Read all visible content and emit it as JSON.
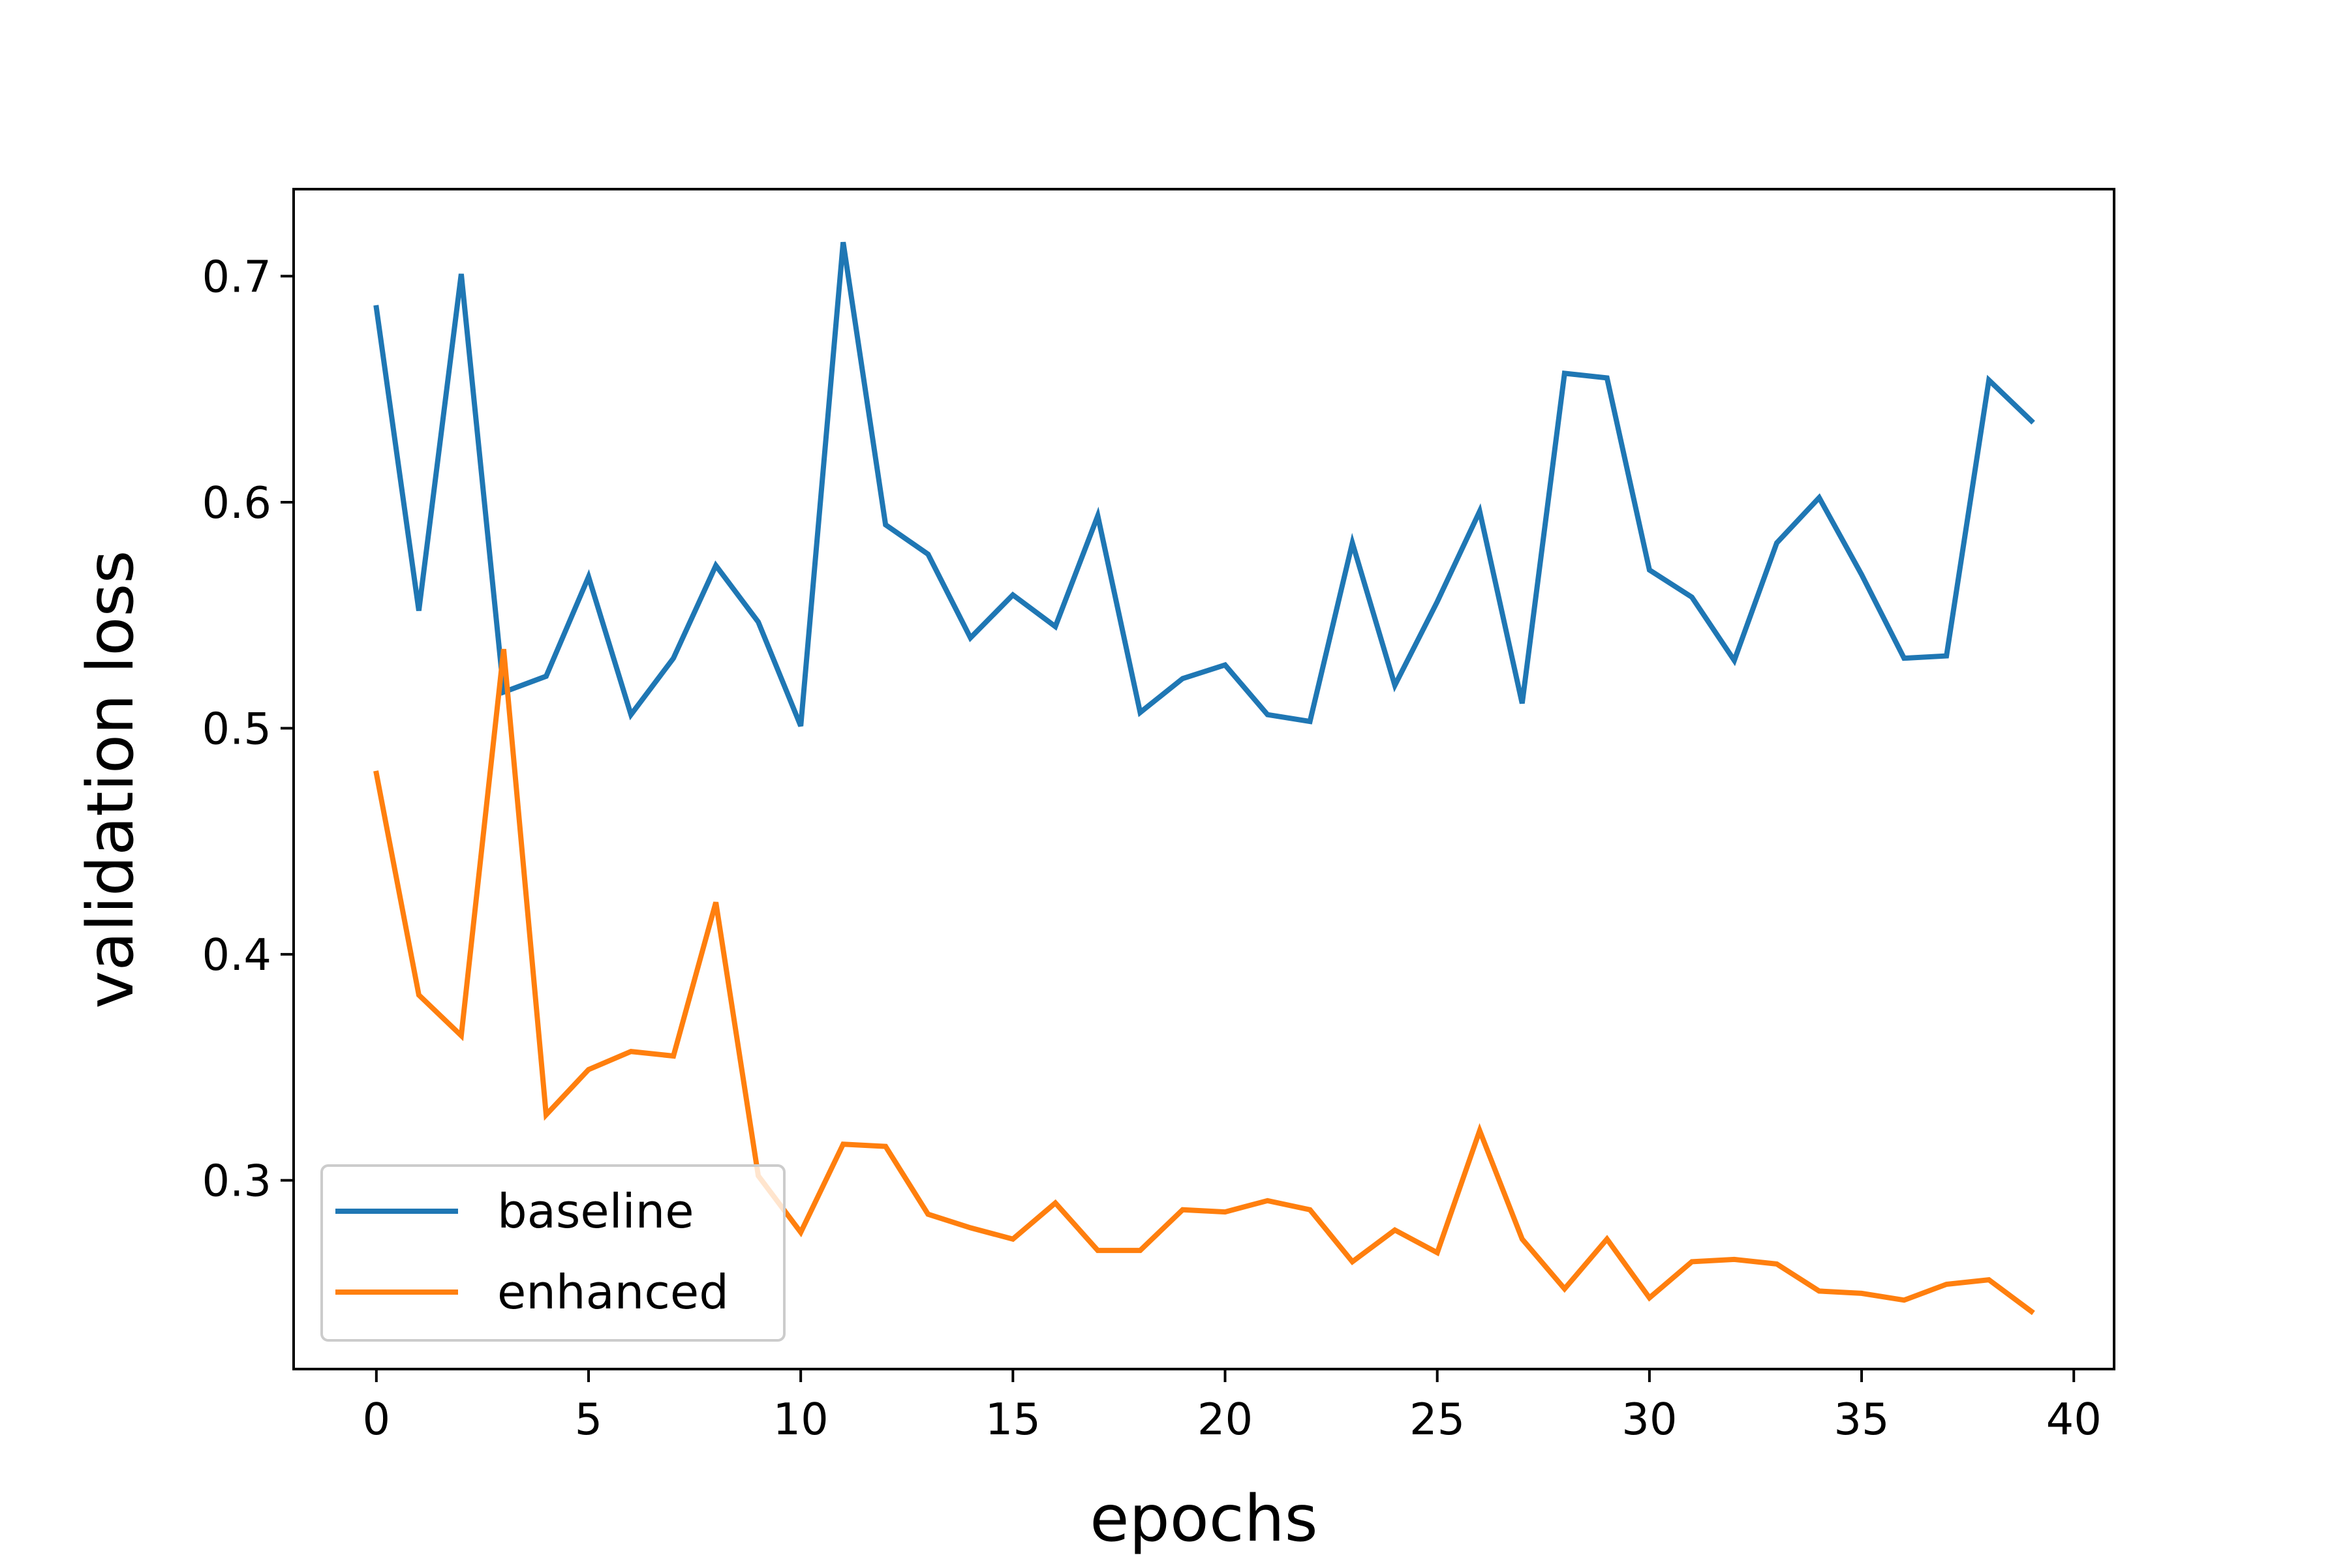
{
  "chart_data": {
    "type": "line",
    "title": "",
    "xlabel": "epochs",
    "ylabel": "validation loss",
    "xlim": [
      -1.95,
      40.95
    ],
    "ylim": [
      0.2165,
      0.7385
    ],
    "xticks": [
      0,
      5,
      10,
      15,
      20,
      25,
      30,
      35,
      40
    ],
    "xtick_labels": [
      "0",
      "5",
      "10",
      "15",
      "20",
      "25",
      "30",
      "35",
      "40"
    ],
    "yticks": [
      0.3,
      0.4,
      0.5,
      0.6,
      0.7
    ],
    "ytick_labels": [
      "0.3",
      "0.4",
      "0.5",
      "0.6",
      "0.7"
    ],
    "grid": false,
    "legend_position": "lower-left",
    "x": [
      0,
      1,
      2,
      3,
      4,
      5,
      6,
      7,
      8,
      9,
      10,
      11,
      12,
      13,
      14,
      15,
      16,
      17,
      18,
      19,
      20,
      21,
      22,
      23,
      24,
      25,
      26,
      27,
      28,
      29,
      30,
      31,
      32,
      33,
      34,
      35,
      36,
      37,
      38,
      39
    ],
    "series": [
      {
        "name": "baseline",
        "color": "#1f77b4",
        "values": [
          0.686,
          0.552,
          0.701,
          0.516,
          0.523,
          0.567,
          0.506,
          0.531,
          0.572,
          0.547,
          0.501,
          0.715,
          0.59,
          0.577,
          0.54,
          0.559,
          0.545,
          0.594,
          0.507,
          0.522,
          0.528,
          0.506,
          0.503,
          0.582,
          0.519,
          0.556,
          0.596,
          0.511,
          0.657,
          0.655,
          0.57,
          0.558,
          0.53,
          0.582,
          0.602,
          0.568,
          0.531,
          0.532,
          0.654,
          0.636
        ]
      },
      {
        "name": "enhanced",
        "color": "#ff7f0e",
        "values": [
          0.48,
          0.382,
          0.364,
          0.535,
          0.329,
          0.349,
          0.357,
          0.355,
          0.423,
          0.302,
          0.277,
          0.316,
          0.315,
          0.285,
          0.279,
          0.274,
          0.29,
          0.269,
          0.269,
          0.287,
          0.286,
          0.291,
          0.287,
          0.264,
          0.278,
          0.268,
          0.322,
          0.274,
          0.252,
          0.274,
          0.248,
          0.264,
          0.265,
          0.263,
          0.251,
          0.25,
          0.247,
          0.254,
          0.256,
          0.242
        ]
      }
    ]
  }
}
